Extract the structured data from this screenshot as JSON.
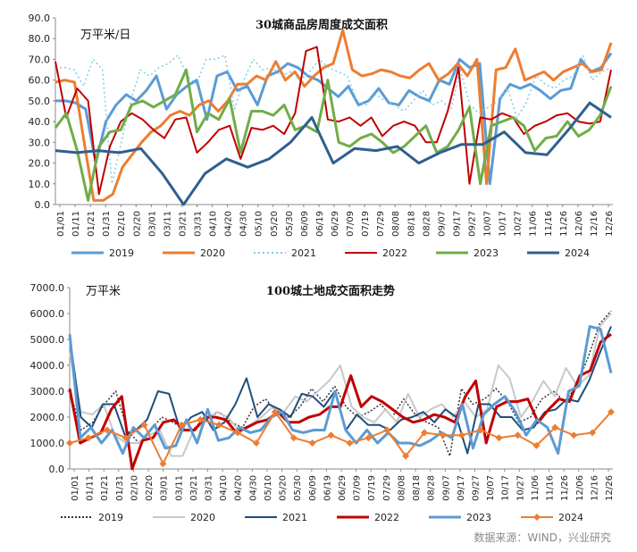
{
  "source": "数据来源：WIND，兴业研究",
  "x_labels": [
    "01/01",
    "01/11",
    "01/21",
    "01/31",
    "02/10",
    "02/20",
    "03/01",
    "03/11",
    "03/21",
    "03/31",
    "04/10",
    "04/20",
    "04/30",
    "05/10",
    "05/20",
    "05/30",
    "06/09",
    "06/19",
    "06/29",
    "07/09",
    "07/19",
    "07/29",
    "08/08",
    "08/18",
    "08/28",
    "09/07",
    "09/17",
    "09/27",
    "10/07",
    "10/17",
    "10/27",
    "11/06",
    "11/16",
    "11/26",
    "12/06",
    "12/16",
    "12/26"
  ],
  "chart_data": [
    {
      "type": "line",
      "title": "30城商品房周度成交面积",
      "unit": "万平米/日",
      "ylim": [
        0,
        90
      ],
      "yticks": [
        "0.0",
        "10.0",
        "20.0",
        "30.0",
        "40.0",
        "50.0",
        "60.0",
        "70.0",
        "80.0",
        "90.0"
      ],
      "legend_position": "bottom",
      "series": [
        {
          "name": "2019",
          "color": "#5b9bd5",
          "dash": "none",
          "width": 3,
          "values": [
            50,
            50,
            49,
            46,
            20,
            40,
            48,
            53,
            50,
            55,
            62,
            46,
            53,
            57,
            60,
            41,
            62,
            64,
            55,
            57,
            48,
            62,
            64,
            68,
            66,
            62,
            60,
            56,
            52,
            57,
            48,
            50,
            56,
            49,
            48,
            55,
            52,
            50,
            60,
            58,
            70,
            66,
            68,
            10,
            51,
            58,
            56,
            58,
            55,
            51,
            55,
            56,
            70,
            64,
            66,
            73
          ]
        },
        {
          "name": "2020",
          "color": "#ed7d31",
          "dash": "none",
          "width": 3,
          "values": [
            59,
            60,
            59,
            30,
            2,
            2,
            5,
            18,
            24,
            30,
            35,
            38,
            43,
            45,
            43,
            48,
            50,
            45,
            50,
            58,
            58,
            62,
            60,
            69,
            60,
            64,
            57,
            62,
            66,
            68,
            84,
            65,
            62,
            63,
            65,
            64,
            62,
            61,
            65,
            68,
            60,
            63,
            68,
            62,
            70,
            10,
            65,
            66,
            75,
            60,
            62,
            64,
            60,
            64,
            66,
            68,
            64,
            65,
            78
          ]
        },
        {
          "name": "2021",
          "color": "#7ecbe9",
          "dash": "2,3",
          "width": 1.5,
          "values": [
            66,
            66,
            65,
            57,
            70,
            65,
            10,
            30,
            50,
            65,
            62,
            66,
            68,
            72,
            62,
            58,
            70,
            70,
            72,
            46,
            60,
            70,
            65,
            66,
            62,
            64,
            60,
            64,
            70,
            66,
            64,
            62,
            50,
            48,
            53,
            50,
            48,
            45,
            50,
            55,
            48,
            50,
            46,
            65,
            48,
            44,
            47,
            50,
            56,
            42,
            49,
            62,
            58,
            56,
            60,
            62,
            72,
            60,
            64,
            66
          ]
        },
        {
          "name": "2022",
          "color": "#c00000",
          "dash": "none",
          "width": 2,
          "values": [
            69,
            42,
            56,
            50,
            5,
            28,
            40,
            44,
            41,
            36,
            32,
            41,
            42,
            25,
            30,
            36,
            38,
            22,
            37,
            36,
            38,
            34,
            44,
            74,
            76,
            41,
            40,
            42,
            38,
            42,
            33,
            38,
            40,
            38,
            30,
            30,
            45,
            66,
            10,
            42,
            41,
            44,
            42,
            34,
            38,
            40,
            43,
            44,
            40,
            39,
            40,
            65
          ]
        },
        {
          "name": "2023",
          "color": "#70ad47",
          "dash": "none",
          "width": 3,
          "values": [
            37,
            44,
            26,
            2,
            28,
            35,
            36,
            48,
            50,
            47,
            50,
            53,
            65,
            35,
            44,
            41,
            51,
            25,
            45,
            45,
            43,
            48,
            36,
            38,
            35,
            60,
            30,
            28,
            32,
            34,
            30,
            25,
            28,
            33,
            38,
            25,
            28,
            36,
            47,
            10,
            38,
            40,
            42,
            38,
            26,
            32,
            33,
            40,
            33,
            36,
            43,
            57
          ]
        },
        {
          "name": "2024",
          "color": "#2e5f8f",
          "dash": "none",
          "width": 3,
          "values": [
            26,
            25,
            26,
            25,
            27,
            15,
            0,
            15,
            22,
            18,
            22,
            30,
            42,
            20,
            27,
            26,
            28,
            20,
            25,
            29,
            29,
            35,
            25,
            24,
            36,
            49,
            42
          ]
        }
      ]
    },
    {
      "type": "line",
      "title": "100城土地成交面积走势",
      "unit": "万平米",
      "ylim": [
        0,
        7000
      ],
      "yticks": [
        "0.0",
        "1000.0",
        "2000.0",
        "3000.0",
        "4000.0",
        "5000.0",
        "6000.0",
        "7000.0"
      ],
      "legend_position": "bottom",
      "series": [
        {
          "name": "2019",
          "color": "#333333",
          "dash": "2,2",
          "width": 1.5,
          "values": [
            3000,
            1500,
            1800,
            2500,
            3000,
            1500,
            1000,
            1500,
            2000,
            1800,
            1500,
            1600,
            2000,
            2200,
            1800,
            1600,
            2400,
            2700,
            2200,
            2000,
            2400,
            3100,
            2600,
            3200,
            2400,
            2000,
            2200,
            2500,
            2000,
            2700,
            2100,
            1800,
            1600,
            500,
            3100,
            2500,
            2700,
            3100,
            2600,
            1800,
            2000,
            2700,
            3000,
            2600,
            3200,
            4300,
            5600,
            6100
          ]
        },
        {
          "name": "2020",
          "color": "#c8c8c8",
          "dash": "none",
          "width": 2,
          "values": [
            4500,
            2200,
            2100,
            2500,
            1300,
            1000,
            1000,
            1300,
            1500,
            500,
            500,
            1500,
            1800,
            2200,
            2000,
            1500,
            1700,
            2000,
            2400,
            2200,
            2800,
            2600,
            3000,
            3400,
            4000,
            2400,
            2000,
            1800,
            2300,
            1800,
            2900,
            2000,
            2300,
            2500,
            2000,
            2600,
            2000,
            2300,
            4000,
            3500,
            2000,
            2600,
            3400,
            2800,
            3900,
            3200,
            3600,
            5500,
            6000
          ]
        },
        {
          "name": "2021",
          "color": "#1f4e79",
          "dash": "none",
          "width": 2,
          "values": [
            5100,
            2000,
            1600,
            2500,
            2500,
            1300,
            1500,
            1900,
            3000,
            2900,
            1500,
            2000,
            2200,
            1500,
            1800,
            2500,
            3500,
            2000,
            2500,
            2300,
            2000,
            2900,
            2800,
            2400,
            3000,
            1500,
            2100,
            1700,
            1700,
            1500,
            1900,
            2000,
            2200,
            1800,
            2300,
            2000,
            600,
            2500,
            2500,
            2000,
            2000,
            1500,
            1600,
            2200,
            2300,
            2700,
            2600,
            3400,
            4500,
            5500
          ]
        },
        {
          "name": "2022",
          "color": "#c00000",
          "dash": "none",
          "width": 3,
          "values": [
            3100,
            1000,
            1200,
            1400,
            2300,
            2800,
            0,
            1100,
            1200,
            1800,
            1900,
            1500,
            1500,
            2000,
            2000,
            1900,
            1400,
            1600,
            1800,
            1900,
            2200,
            1800,
            1800,
            2000,
            2100,
            2400,
            2400,
            3600,
            2400,
            2800,
            2600,
            2300,
            2000,
            1800,
            1900,
            2100,
            2000,
            1800,
            2800,
            3400,
            1000,
            2400,
            2600,
            2600,
            2700,
            1800,
            2300,
            2700,
            2600,
            3600,
            3800,
            4900,
            5200
          ]
        },
        {
          "name": "2023",
          "color": "#5b9bd5",
          "dash": "none",
          "width": 3,
          "values": [
            5200,
            1200,
            1600,
            1000,
            1500,
            600,
            1600,
            1200,
            1700,
            800,
            900,
            1900,
            1000,
            2300,
            1100,
            1200,
            1600,
            1400,
            1500,
            2000,
            2200,
            1500,
            1400,
            1500,
            1500,
            3000,
            1500,
            1000,
            1500,
            1000,
            1400,
            1000,
            1000,
            900,
            1100,
            1400,
            1200,
            2500,
            800,
            2100,
            2500,
            2800,
            2200,
            1300,
            1900,
            1600,
            600,
            3000,
            3200,
            5500,
            5400,
            3700
          ]
        },
        {
          "name": "2024",
          "color": "#ed7d31",
          "dash": "none",
          "width": 2,
          "marker": "diamond",
          "values": [
            1000,
            1200,
            1500,
            1200,
            1700,
            200,
            1700,
            1900,
            1700,
            1400,
            1000,
            2200,
            1200,
            1000,
            1300,
            1000,
            1200,
            1500,
            500,
            1400,
            1300,
            1300,
            1500,
            1200,
            1300,
            900,
            1600,
            1300,
            1400,
            2200
          ]
        }
      ]
    }
  ]
}
